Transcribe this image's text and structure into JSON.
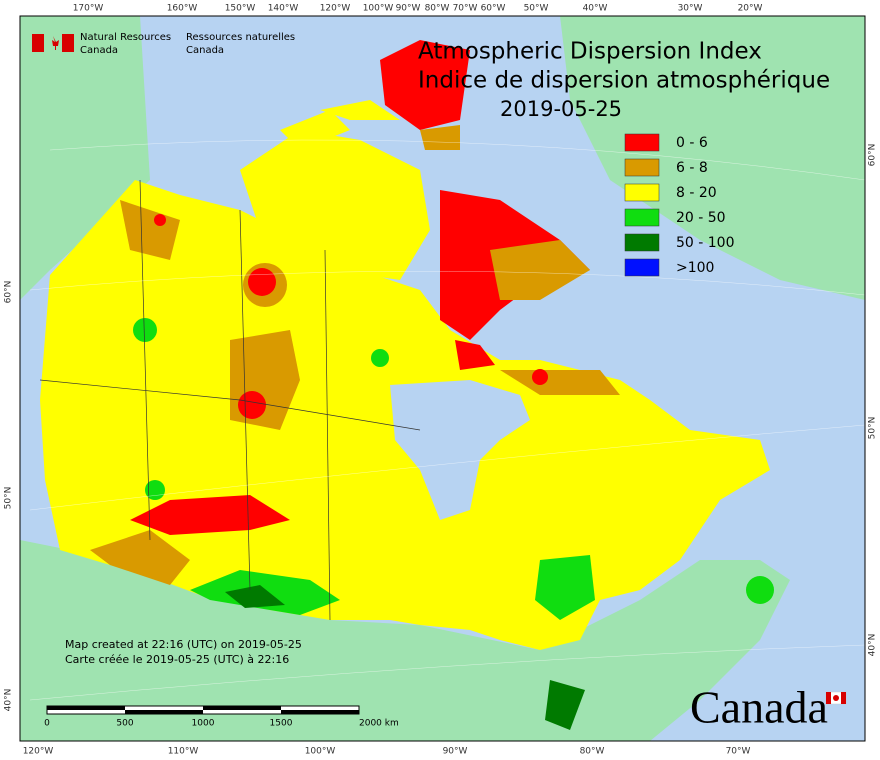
{
  "header": {
    "dept_en": [
      "Natural Resources",
      "Canada"
    ],
    "dept_fr": [
      "Ressources naturelles",
      "Canada"
    ]
  },
  "title": [
    "Atmospheric Dispersion Index",
    "Indice de dispersion atmosphérique"
  ],
  "date": "2019-05-25",
  "legend": [
    {
      "label": "0 - 6",
      "color": "#ff0000"
    },
    {
      "label": "6 - 8",
      "color": "#d99a00"
    },
    {
      "label": "8 - 20",
      "color": "#ffff00"
    },
    {
      "label": "20 - 50",
      "color": "#10dd10"
    },
    {
      "label": "50 - 100",
      "color": "#007a00"
    },
    {
      "label": ">100",
      "color": "#0010ff"
    }
  ],
  "graticule": {
    "top": [
      "170°W",
      "160°W",
      "150°W",
      "140°W",
      "120°W",
      "100°W",
      "90°W",
      "80°W",
      "70°W",
      "60°W",
      "50°W",
      "40°W",
      "30°W",
      "20°W"
    ],
    "bottom": [
      "120°W",
      "110°W",
      "100°W",
      "90°W",
      "80°W",
      "70°W"
    ],
    "left": [
      "60°N",
      "50°N",
      "40°N"
    ],
    "right": [
      "60°N",
      "50°N",
      "40°N"
    ]
  },
  "credits": [
    "Map created at 22:16 (UTC) on 2019-05-25",
    "Carte créée le 2019-05-25 (UTC) à 22:16"
  ],
  "scale": [
    "0",
    "500",
    "1000",
    "1500",
    "2000 km"
  ],
  "wordmark": "Canada"
}
